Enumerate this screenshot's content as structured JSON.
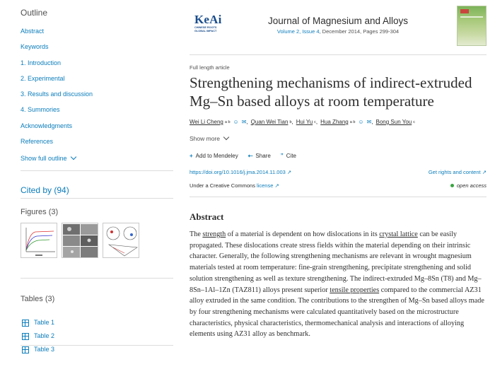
{
  "sidebar": {
    "outline_title": "Outline",
    "outline": [
      "Abstract",
      "Keywords",
      "1. Introduction",
      "2. Experimental",
      "3. Results and discussion",
      "4. Summories",
      "Acknowledgments",
      "References"
    ],
    "show_full": "Show full outline",
    "cited_by": "Cited by (94)",
    "figures_title": "Figures (3)",
    "tables_title": "Tables (3)",
    "tables": [
      "Table 1",
      "Table 2",
      "Table 3"
    ]
  },
  "header": {
    "logo_text": "KeAi",
    "logo_sub": "CHINESE ROOTS GLOBAL IMPACT",
    "journal_title": "Journal of Magnesium and Alloys",
    "volume": "Volume 2, Issue 4",
    "date_pages": ", December 2014, Pages 299-304"
  },
  "article": {
    "type": "Full length article",
    "title": "Strengthening mechanisms of indirect-extruded Mg–Sn based alloys at room temperature",
    "authors": [
      {
        "name": "Wei Li Cheng",
        "sup": "a b",
        "icons": true
      },
      {
        "name": "Quan Wei Tian",
        "sup": "b",
        "icons": false
      },
      {
        "name": "Hui Yu",
        "sup": "c",
        "icons": false
      },
      {
        "name": "Hua Zhang",
        "sup": "a b",
        "icons": true
      },
      {
        "name": "Bong Sun You",
        "sup": "c",
        "icons": false
      }
    ],
    "show_more": "Show more",
    "add_mendeley": "Add to Mendeley",
    "share": "Share",
    "cite": "Cite",
    "doi": "https://doi.org/10.1016/j.jma.2014.11.003",
    "rights": "Get rights and content",
    "license_prefix": "Under a Creative Commons ",
    "license_link": "license",
    "open_access": "open access",
    "abstract_title": "Abstract",
    "abstract_parts": [
      "The ",
      "strength",
      " of a material is dependent on how dislocations in its ",
      "crystal lattice",
      " can be easily propagated. These dislocations create stress fields within the material depending on their intrinsic character. Generally, the following strengthening mechanisms are relevant in wrought magnesium materials tested at room temperature: fine-grain strengthening, precipitate strengthening and solid solution strengthening as well as texture strengthening. The indirect-extruded Mg–8Sn (T8) and Mg–8Sn–1Al–1Zn (TAZ811) alloys present superior ",
      "tensile properties",
      " compared to the commercial AZ31 alloy extruded in the same condition. The contributions to the strengthen of Mg–Sn based alloys made by four strengthening mechanisms were calculated quantitatively based on the microstructure characteristics, physical characteristics, thermomechanical analysis and interactions of alloying elements using AZ31 alloy as benchmark."
    ]
  },
  "colors": {
    "link": "#0c7dbb",
    "text": "#2e2e2e",
    "open_access_dot": "#3aa441"
  }
}
